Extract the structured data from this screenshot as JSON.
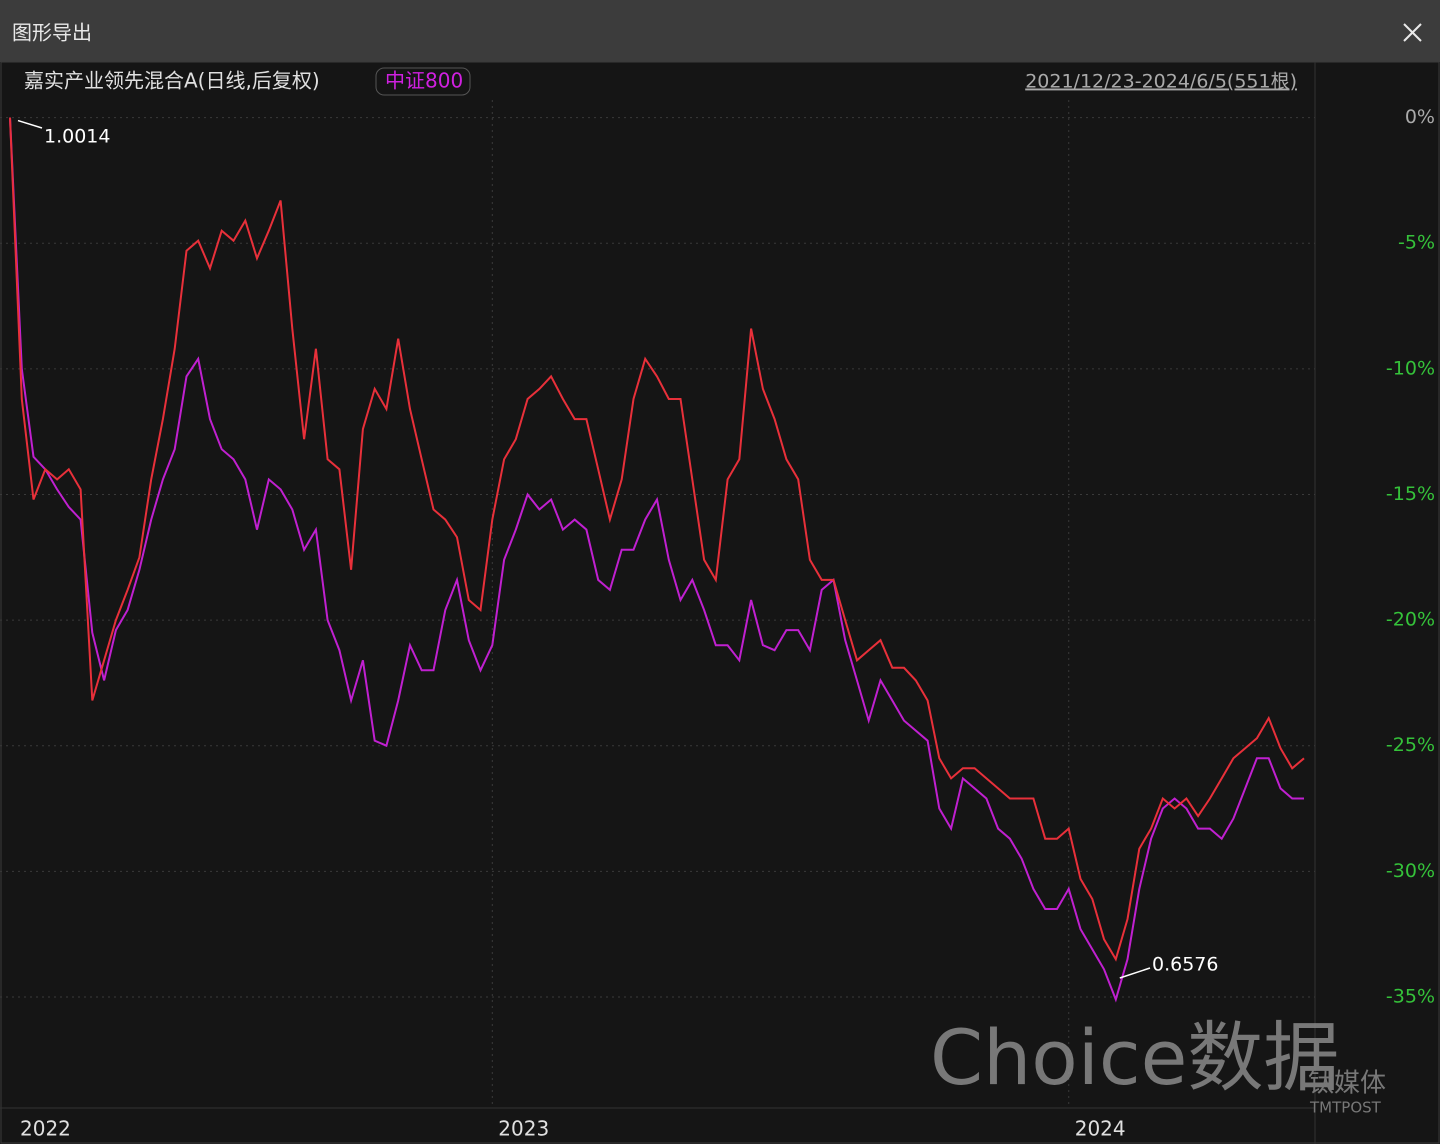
{
  "window": {
    "title": "图形导出"
  },
  "chart_data": {
    "type": "line",
    "subtitle": "2021/12/23-2024/6/5(551根)",
    "annotations": [
      "1.0014",
      "0.6576"
    ],
    "watermark": [
      "Choice数据",
      "钛媒体",
      "TMTPOST"
    ],
    "ylim": [
      -39.3,
      0.7
    ],
    "yticks": [
      {
        "value": 0,
        "label": "0%"
      },
      {
        "value": -5,
        "label": "-5%"
      },
      {
        "value": -10,
        "label": "-10%"
      },
      {
        "value": -15,
        "label": "-15%"
      },
      {
        "value": -20,
        "label": "-20%"
      },
      {
        "value": -25,
        "label": "-25%"
      },
      {
        "value": -30,
        "label": "-30%"
      },
      {
        "value": -35,
        "label": "-35%"
      }
    ],
    "grid": true,
    "categories": [
      null,
      "2022",
      null,
      null,
      null,
      null,
      null,
      null,
      null,
      null,
      null,
      null,
      null,
      null,
      null,
      null,
      null,
      null,
      null,
      null,
      null,
      null,
      null,
      null,
      null,
      null,
      null,
      null,
      null,
      null,
      null,
      null,
      null,
      null,
      null,
      null,
      null,
      null,
      null,
      null,
      null,
      "2023",
      null,
      null,
      null,
      null,
      null,
      null,
      null,
      null,
      null,
      null,
      null,
      null,
      null,
      null,
      null,
      null,
      null,
      null,
      null,
      null,
      null,
      null,
      null,
      null,
      null,
      null,
      null,
      null,
      null,
      null,
      null,
      null,
      null,
      null,
      null,
      null,
      null,
      null,
      null,
      null,
      null,
      null,
      null,
      null,
      null,
      null,
      null,
      null,
      "2024",
      null,
      null,
      null,
      null,
      null,
      null,
      null,
      null,
      null,
      null,
      null,
      null,
      null,
      null,
      null,
      null,
      null,
      null,
      null,
      null
    ],
    "series": [
      {
        "name": "嘉实产业领先混合A(日线,后复权)",
        "color": "#e8303a",
        "values": [
          0,
          -11.2,
          -15.2,
          -14,
          -14.4,
          -14,
          -14.8,
          -23.2,
          -21.6,
          -20,
          -18.8,
          -17.5,
          -14.4,
          -12,
          -9.2,
          -5.3,
          -4.9,
          -6,
          -4.5,
          -4.9,
          -4.1,
          -5.6,
          -4.5,
          -3.3,
          -8.4,
          -12.8,
          -9.2,
          -13.6,
          -14,
          -18,
          -12.4,
          -10.8,
          -11.6,
          -8.8,
          -11.6,
          -13.6,
          -15.6,
          -16,
          -16.7,
          -19.2,
          -19.6,
          -16,
          -13.6,
          -12.8,
          -11.2,
          -10.8,
          -10.3,
          -11.2,
          -12,
          -12,
          -14,
          -16,
          -14.4,
          -11.2,
          -9.6,
          -10.3,
          -11.2,
          -11.2,
          -14.4,
          -17.6,
          -18.4,
          -14.4,
          -13.6,
          -8.4,
          -10.8,
          -12,
          -13.6,
          -14.4,
          -17.6,
          -18.4,
          -18.4,
          -20,
          -21.6,
          -21.2,
          -20.8,
          -21.9,
          -21.9,
          -22.4,
          -23.2,
          -25.5,
          -26.3,
          -25.9,
          -25.9,
          -26.3,
          -26.7,
          -27.1,
          -27.1,
          -27.1,
          -28.7,
          -28.7,
          -28.3,
          -30.3,
          -31.1,
          -32.7,
          -33.5,
          -31.9,
          -29.1,
          -28.3,
          -27.1,
          -27.5,
          -27.1,
          -27.8,
          -27.1,
          -26.3,
          -25.5,
          -25.1,
          -24.7,
          -23.9,
          -25.1,
          -25.9,
          -25.5
        ]
      },
      {
        "name": "中证800",
        "color": "#c020d0",
        "values": [
          0,
          -10,
          -13.5,
          -14,
          -14.8,
          -15.5,
          -16,
          -20.5,
          -22.4,
          -20.4,
          -19.6,
          -18,
          -16,
          -14.4,
          -13.2,
          -10.3,
          -9.6,
          -12,
          -13.2,
          -13.6,
          -14.4,
          -16.4,
          -14.4,
          -14.8,
          -15.6,
          -17.2,
          -16.4,
          -20,
          -21.2,
          -23.2,
          -21.6,
          -24.8,
          -25,
          -23.2,
          -21,
          -22,
          -22,
          -19.6,
          -18.4,
          -20.8,
          -22,
          -21,
          -17.6,
          -16.4,
          -15,
          -15.6,
          -15.2,
          -16.4,
          -16,
          -16.4,
          -18.4,
          -18.8,
          -17.2,
          -17.2,
          -16,
          -15.2,
          -17.6,
          -19.2,
          -18.4,
          -19.6,
          -21,
          -21,
          -21.6,
          -19.2,
          -21,
          -21.2,
          -20.4,
          -20.4,
          -21.2,
          -18.8,
          -18.4,
          -20.8,
          -22.4,
          -24,
          -22.4,
          -23.2,
          -24,
          -24.4,
          -24.8,
          -27.5,
          -28.3,
          -26.3,
          -26.7,
          -27.1,
          -28.3,
          -28.7,
          -29.5,
          -30.7,
          -31.5,
          -31.5,
          -30.7,
          -32.3,
          -33.1,
          -33.9,
          -35.1,
          -33.5,
          -30.7,
          -28.7,
          -27.5,
          -27.1,
          -27.5,
          -28.3,
          -28.3,
          -28.7,
          -27.9,
          -26.7,
          -25.5,
          -25.5,
          -26.7,
          -27.1,
          -27.1
        ]
      }
    ]
  }
}
